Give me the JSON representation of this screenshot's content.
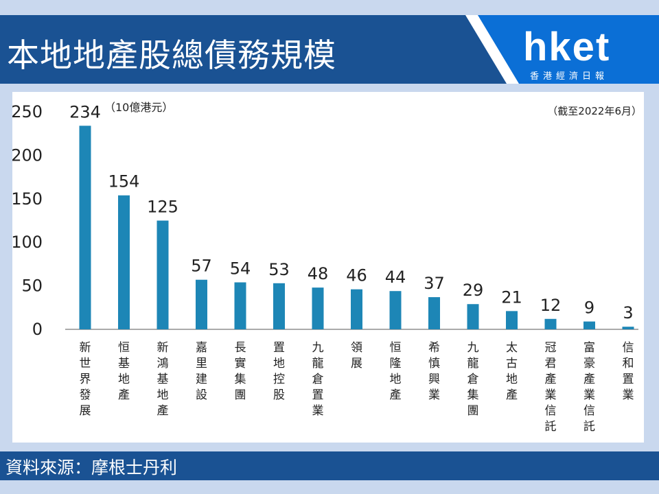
{
  "header": {
    "title": "本地地產股總債務規模",
    "logo_text": "hket",
    "logo_subtitle": "香港經濟日報"
  },
  "footer": {
    "source": "資料來源：摩根士丹利"
  },
  "colors": {
    "bar": "#1d86b6",
    "header_bg": "#1a5293",
    "logo_bg": "#0b6fd6"
  },
  "chart_data": {
    "type": "bar",
    "unit_note": "（10億港元）",
    "date_note": "（截至2022年6月）",
    "categories": [
      "新世界發展",
      "恒基地產",
      "新鴻基地產",
      "嘉里建設",
      "長實集團",
      "置地控股",
      "九龍倉置業",
      "領展",
      "恒隆地產",
      "希慎興業",
      "九龍倉集團",
      "太古地產",
      "冠君產業信託",
      "富豪產業信託",
      "信和置業"
    ],
    "values": [
      234,
      154,
      125,
      57,
      54,
      53,
      48,
      46,
      44,
      37,
      29,
      21,
      12,
      9,
      3
    ],
    "yticks": [
      "0",
      "50",
      "100",
      "150",
      "200",
      "250"
    ],
    "ylim": [
      0,
      250
    ],
    "grid": false,
    "legend": "none"
  }
}
